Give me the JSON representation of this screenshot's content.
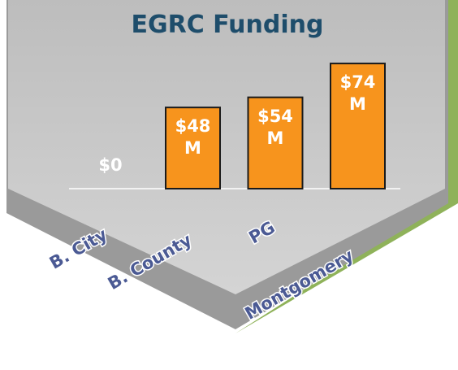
{
  "chart_data": {
    "type": "bar",
    "title": "EGRC Funding",
    "categories": [
      "B. City",
      "B. County",
      "PG",
      "Montgomery"
    ],
    "values": [
      0,
      48,
      54,
      74
    ],
    "value_labels": [
      "$0",
      "$48 M",
      "$54 M",
      "$74 M"
    ],
    "color": "#f7941d"
  }
}
